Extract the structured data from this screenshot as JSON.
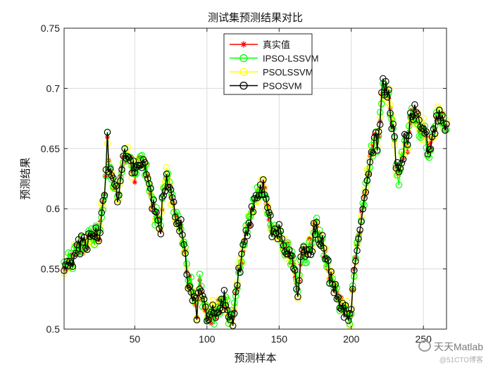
{
  "chart_data": {
    "type": "line",
    "title": "测试集预测结果对比",
    "xlabel": "预测样本",
    "ylabel": "预测结果",
    "xlim": [
      1,
      266
    ],
    "ylim": [
      0.5,
      0.75
    ],
    "xticks": [
      50,
      100,
      150,
      200,
      250
    ],
    "yticks": [
      0.5,
      0.55,
      0.6,
      0.65,
      0.7,
      0.75
    ],
    "ytick_labels": [
      "0.5",
      "0.55",
      "0.6",
      "0.65",
      "0.7",
      "0.75"
    ],
    "grid": true,
    "legend_position": "top-center",
    "anchors": {
      "x": [
        1,
        5,
        10,
        15,
        20,
        25,
        28,
        30,
        31,
        32,
        34,
        36,
        39,
        40,
        42,
        45,
        48,
        50,
        52,
        55,
        58,
        60,
        63,
        66,
        68,
        70,
        72,
        75,
        78,
        80,
        83,
        86,
        90,
        93,
        95,
        98,
        100,
        103,
        106,
        110,
        113,
        116,
        118,
        120,
        123,
        126,
        130,
        133,
        136,
        139,
        142,
        145,
        148,
        150,
        153,
        156,
        160,
        163,
        166,
        169,
        172,
        175,
        178,
        181,
        184,
        187,
        190,
        193,
        196,
        198,
        199,
        200,
        202,
        205,
        208,
        211,
        213,
        216,
        219,
        221,
        223,
        226,
        229,
        231,
        233,
        236,
        239,
        241,
        244,
        247,
        250,
        252,
        254,
        257,
        260,
        263,
        266
      ],
      "y": [
        0.55,
        0.555,
        0.565,
        0.57,
        0.575,
        0.58,
        0.6,
        0.63,
        0.655,
        0.64,
        0.63,
        0.615,
        0.61,
        0.63,
        0.638,
        0.645,
        0.635,
        0.63,
        0.638,
        0.64,
        0.63,
        0.62,
        0.6,
        0.595,
        0.585,
        0.615,
        0.625,
        0.615,
        0.595,
        0.59,
        0.575,
        0.55,
        0.53,
        0.515,
        0.535,
        0.52,
        0.51,
        0.512,
        0.515,
        0.52,
        0.525,
        0.51,
        0.505,
        0.525,
        0.555,
        0.575,
        0.59,
        0.605,
        0.615,
        0.62,
        0.6,
        0.585,
        0.575,
        0.58,
        0.57,
        0.565,
        0.555,
        0.535,
        0.56,
        0.565,
        0.57,
        0.585,
        0.58,
        0.565,
        0.55,
        0.54,
        0.53,
        0.52,
        0.52,
        0.515,
        0.505,
        0.51,
        0.55,
        0.575,
        0.6,
        0.625,
        0.645,
        0.655,
        0.66,
        0.695,
        0.7,
        0.69,
        0.665,
        0.635,
        0.625,
        0.65,
        0.655,
        0.675,
        0.675,
        0.67,
        0.665,
        0.66,
        0.645,
        0.665,
        0.675,
        0.68,
        0.67
      ]
    },
    "series": [
      {
        "name": "真实值",
        "color": "#ff0000",
        "marker": "asterisk"
      },
      {
        "name": "IPSO-LSSVM",
        "color": "#00ff00",
        "marker": "circle"
      },
      {
        "name": "PSOLSSVM",
        "color": "#ffff00",
        "marker": "circle"
      },
      {
        "name": "PSOSVM",
        "color": "#000000",
        "marker": "circle"
      }
    ]
  },
  "watermark": {
    "main": "天天Matlab",
    "sub": "@51CTO博客"
  }
}
